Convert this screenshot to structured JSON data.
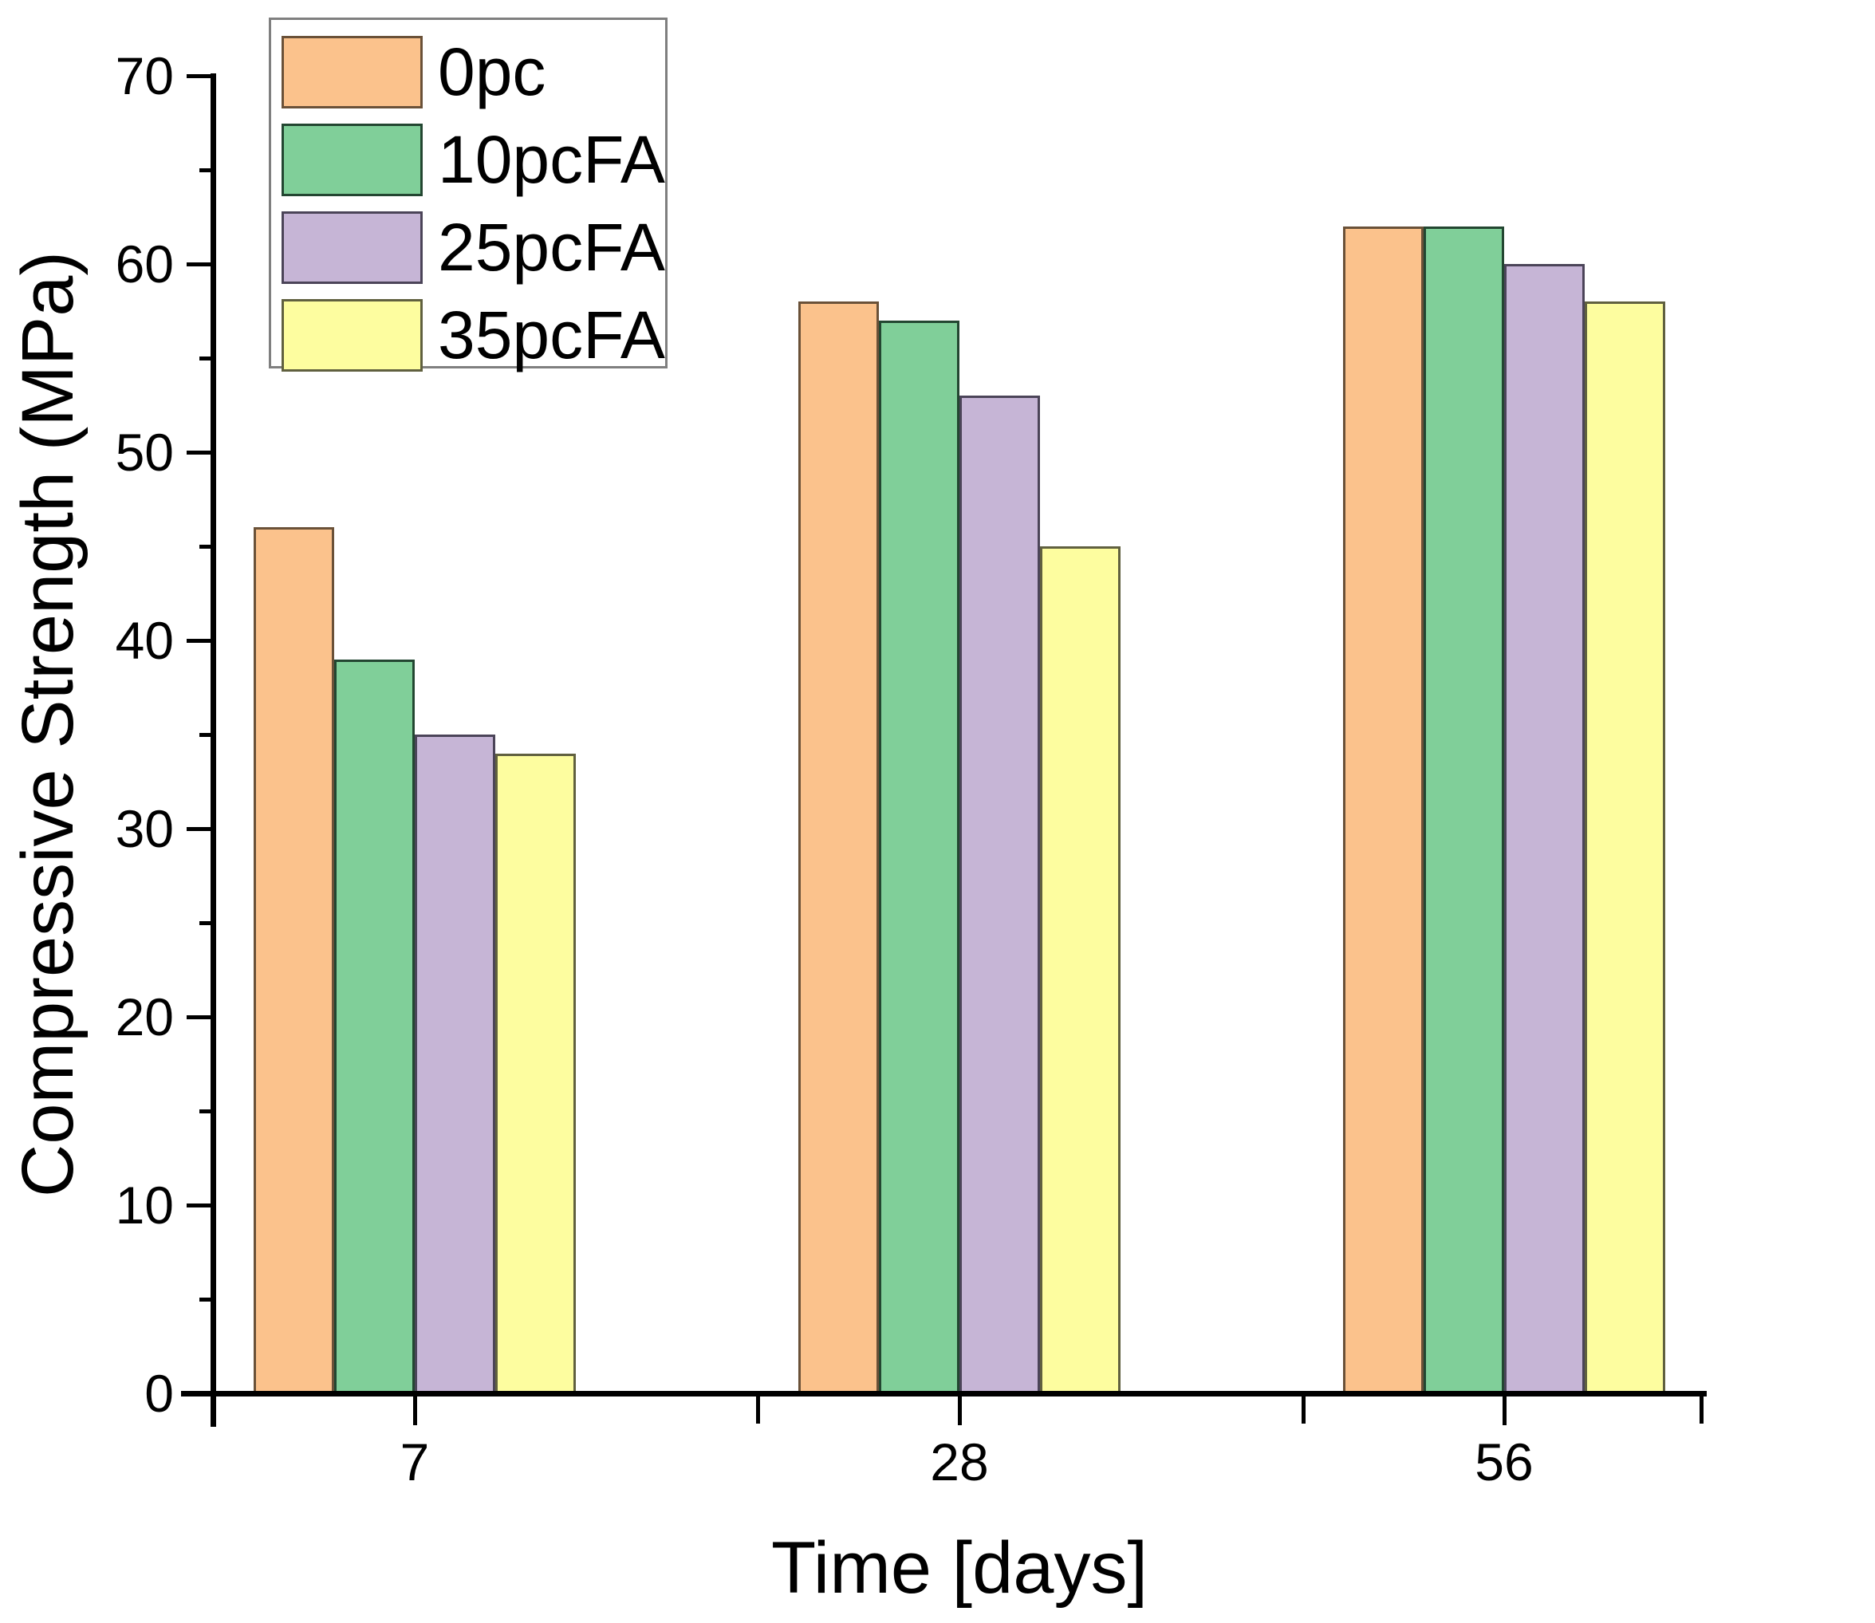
{
  "chart_data": {
    "type": "bar",
    "title": "",
    "xlabel": "Time [days]",
    "ylabel": "Compressive Strength (MPa)",
    "categories": [
      "7",
      "28",
      "56"
    ],
    "series": [
      {
        "name": "0pc",
        "fill": "#FBC28C",
        "border": "#6a5138",
        "values": [
          46,
          58,
          62
        ]
      },
      {
        "name": "10pcFA",
        "fill": "#80CF99",
        "border": "#234631",
        "values": [
          39,
          57,
          62
        ]
      },
      {
        "name": "25pcFA",
        "fill": "#C6B5D6",
        "border": "#4b4458",
        "values": [
          35,
          53,
          60
        ]
      },
      {
        "name": "35pcFA",
        "fill": "#FDFD9F",
        "border": "#60603f",
        "values": [
          34,
          45,
          58
        ]
      }
    ],
    "ylim": [
      0,
      70
    ],
    "yticks": [
      0,
      10,
      20,
      30,
      40,
      50,
      60,
      70
    ],
    "ytick_minor_step": 5,
    "grid": false,
    "legend_position": "top-left",
    "axis_color": "#000000",
    "background": "#ffffff"
  }
}
